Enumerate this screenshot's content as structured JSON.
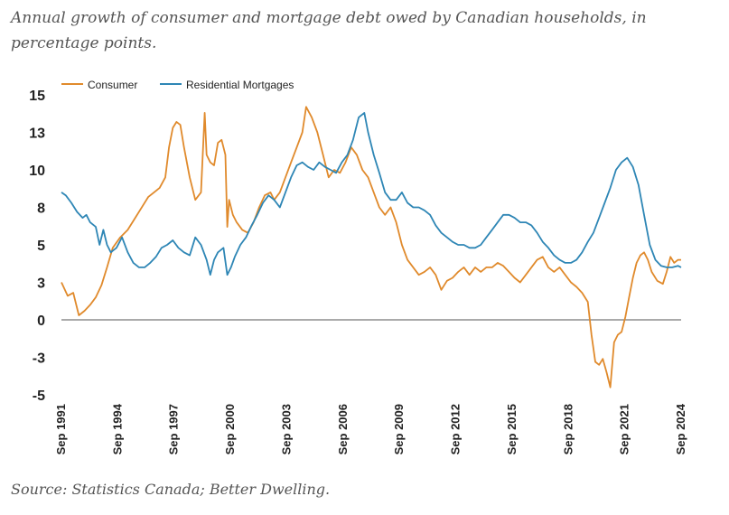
{
  "title": "Annual growth of consumer and mortgage debt owed by Canadian households, in percentage points.",
  "source": "Source: Statistics Canada; Better Dwelling.",
  "colors": {
    "consumer": "#e08a2c",
    "mortgages": "#2e86b5",
    "axis": "#555555"
  },
  "chart_data": {
    "type": "line",
    "xlim": [
      1991.67,
      2024.67
    ],
    "ylim": [
      -5,
      15
    ],
    "y_tick_labels": [
      "15",
      "13",
      "10",
      "8",
      "5",
      "3",
      "0",
      "-3",
      "-5"
    ],
    "y_tick_values": [
      15,
      12.5,
      10,
      7.5,
      5,
      2.5,
      0,
      -2.5,
      -5
    ],
    "x_tick_labels": [
      "Sep 1991",
      "Sep 1994",
      "Sep 1997",
      "Sep 2000",
      "Sep 2003",
      "Sep 2006",
      "Sep 2009",
      "Sep 2012",
      "Sep 2015",
      "Sep 2018",
      "Sep 2021",
      "Sep 2024"
    ],
    "x_tick_values": [
      1991.67,
      1994.67,
      1997.67,
      2000.67,
      2003.67,
      2006.67,
      2009.67,
      2012.67,
      2015.67,
      2018.67,
      2021.67,
      2024.67
    ],
    "legend_position": "top-left",
    "series": [
      {
        "name": "Consumer",
        "points": [
          [
            1991.67,
            2.5
          ],
          [
            1992.0,
            1.6
          ],
          [
            1992.3,
            1.8
          ],
          [
            1992.6,
            0.3
          ],
          [
            1992.9,
            0.6
          ],
          [
            1993.2,
            1.0
          ],
          [
            1993.5,
            1.5
          ],
          [
            1993.8,
            2.3
          ],
          [
            1994.1,
            3.5
          ],
          [
            1994.4,
            4.8
          ],
          [
            1994.8,
            5.5
          ],
          [
            1995.2,
            6.0
          ],
          [
            1995.6,
            6.8
          ],
          [
            1996.0,
            7.6
          ],
          [
            1996.3,
            8.2
          ],
          [
            1996.6,
            8.5
          ],
          [
            1996.9,
            8.8
          ],
          [
            1997.2,
            9.5
          ],
          [
            1997.4,
            11.5
          ],
          [
            1997.6,
            12.8
          ],
          [
            1997.8,
            13.2
          ],
          [
            1998.0,
            13.0
          ],
          [
            1998.2,
            11.5
          ],
          [
            1998.5,
            9.5
          ],
          [
            1998.8,
            8.0
          ],
          [
            1999.1,
            8.5
          ],
          [
            1999.3,
            13.8
          ],
          [
            1999.4,
            11.0
          ],
          [
            1999.6,
            10.5
          ],
          [
            1999.8,
            10.3
          ],
          [
            2000.0,
            11.8
          ],
          [
            2000.2,
            12.0
          ],
          [
            2000.4,
            11.0
          ],
          [
            2000.5,
            6.2
          ],
          [
            2000.6,
            8.0
          ],
          [
            2000.8,
            7.0
          ],
          [
            2001.0,
            6.5
          ],
          [
            2001.3,
            6.0
          ],
          [
            2001.6,
            5.8
          ],
          [
            2001.9,
            6.5
          ],
          [
            2002.2,
            7.5
          ],
          [
            2002.5,
            8.3
          ],
          [
            2002.8,
            8.5
          ],
          [
            2003.0,
            8.0
          ],
          [
            2003.3,
            8.5
          ],
          [
            2003.6,
            9.5
          ],
          [
            2003.9,
            10.5
          ],
          [
            2004.2,
            11.5
          ],
          [
            2004.5,
            12.5
          ],
          [
            2004.7,
            14.2
          ],
          [
            2005.0,
            13.5
          ],
          [
            2005.3,
            12.5
          ],
          [
            2005.6,
            11.0
          ],
          [
            2005.9,
            9.5
          ],
          [
            2006.2,
            10.0
          ],
          [
            2006.5,
            9.8
          ],
          [
            2006.8,
            10.5
          ],
          [
            2007.1,
            11.5
          ],
          [
            2007.4,
            11.0
          ],
          [
            2007.7,
            10.0
          ],
          [
            2008.0,
            9.5
          ],
          [
            2008.3,
            8.5
          ],
          [
            2008.6,
            7.5
          ],
          [
            2008.9,
            7.0
          ],
          [
            2009.2,
            7.5
          ],
          [
            2009.5,
            6.5
          ],
          [
            2009.8,
            5.0
          ],
          [
            2010.1,
            4.0
          ],
          [
            2010.4,
            3.5
          ],
          [
            2010.7,
            3.0
          ],
          [
            2011.0,
            3.2
          ],
          [
            2011.3,
            3.5
          ],
          [
            2011.6,
            3.0
          ],
          [
            2011.9,
            2.0
          ],
          [
            2012.2,
            2.6
          ],
          [
            2012.5,
            2.8
          ],
          [
            2012.8,
            3.2
          ],
          [
            2013.1,
            3.5
          ],
          [
            2013.4,
            3.0
          ],
          [
            2013.7,
            3.5
          ],
          [
            2014.0,
            3.2
          ],
          [
            2014.3,
            3.5
          ],
          [
            2014.6,
            3.5
          ],
          [
            2014.9,
            3.8
          ],
          [
            2015.2,
            3.6
          ],
          [
            2015.5,
            3.2
          ],
          [
            2015.8,
            2.8
          ],
          [
            2016.1,
            2.5
          ],
          [
            2016.4,
            3.0
          ],
          [
            2016.7,
            3.5
          ],
          [
            2017.0,
            4.0
          ],
          [
            2017.3,
            4.2
          ],
          [
            2017.6,
            3.5
          ],
          [
            2017.9,
            3.2
          ],
          [
            2018.2,
            3.5
          ],
          [
            2018.5,
            3.0
          ],
          [
            2018.8,
            2.5
          ],
          [
            2019.1,
            2.2
          ],
          [
            2019.4,
            1.8
          ],
          [
            2019.7,
            1.2
          ],
          [
            2019.9,
            -1.0
          ],
          [
            2020.1,
            -2.8
          ],
          [
            2020.3,
            -3.0
          ],
          [
            2020.5,
            -2.6
          ],
          [
            2020.7,
            -3.5
          ],
          [
            2020.9,
            -4.5
          ],
          [
            2021.1,
            -1.5
          ],
          [
            2021.3,
            -1.0
          ],
          [
            2021.5,
            -0.8
          ],
          [
            2021.7,
            0.2
          ],
          [
            2021.9,
            1.5
          ],
          [
            2022.1,
            2.8
          ],
          [
            2022.3,
            3.8
          ],
          [
            2022.5,
            4.3
          ],
          [
            2022.7,
            4.5
          ],
          [
            2022.9,
            4.0
          ],
          [
            2023.1,
            3.2
          ],
          [
            2023.4,
            2.6
          ],
          [
            2023.7,
            2.4
          ],
          [
            2023.9,
            3.2
          ],
          [
            2024.1,
            4.2
          ],
          [
            2024.3,
            3.8
          ],
          [
            2024.5,
            4.0
          ],
          [
            2024.67,
            4.0
          ]
        ]
      },
      {
        "name": "Residential Mortgages",
        "points": [
          [
            1991.67,
            8.5
          ],
          [
            1991.9,
            8.3
          ],
          [
            1992.2,
            7.8
          ],
          [
            1992.5,
            7.2
          ],
          [
            1992.8,
            6.8
          ],
          [
            1993.0,
            7.0
          ],
          [
            1993.2,
            6.5
          ],
          [
            1993.5,
            6.2
          ],
          [
            1993.7,
            5.0
          ],
          [
            1993.9,
            6.0
          ],
          [
            1994.1,
            5.0
          ],
          [
            1994.3,
            4.5
          ],
          [
            1994.6,
            4.8
          ],
          [
            1994.9,
            5.5
          ],
          [
            1995.2,
            4.5
          ],
          [
            1995.5,
            3.8
          ],
          [
            1995.8,
            3.5
          ],
          [
            1996.1,
            3.5
          ],
          [
            1996.4,
            3.8
          ],
          [
            1996.7,
            4.2
          ],
          [
            1997.0,
            4.8
          ],
          [
            1997.3,
            5.0
          ],
          [
            1997.6,
            5.3
          ],
          [
            1997.9,
            4.8
          ],
          [
            1998.2,
            4.5
          ],
          [
            1998.5,
            4.3
          ],
          [
            1998.8,
            5.5
          ],
          [
            1999.1,
            5.0
          ],
          [
            1999.4,
            4.0
          ],
          [
            1999.6,
            3.0
          ],
          [
            1999.8,
            4.0
          ],
          [
            2000.0,
            4.5
          ],
          [
            2000.3,
            4.8
          ],
          [
            2000.5,
            3.0
          ],
          [
            2000.7,
            3.5
          ],
          [
            2000.9,
            4.2
          ],
          [
            2001.2,
            5.0
          ],
          [
            2001.5,
            5.5
          ],
          [
            2001.8,
            6.3
          ],
          [
            2002.1,
            7.0
          ],
          [
            2002.4,
            7.8
          ],
          [
            2002.7,
            8.3
          ],
          [
            2003.0,
            8.0
          ],
          [
            2003.3,
            7.5
          ],
          [
            2003.6,
            8.5
          ],
          [
            2003.9,
            9.5
          ],
          [
            2004.2,
            10.3
          ],
          [
            2004.5,
            10.5
          ],
          [
            2004.8,
            10.2
          ],
          [
            2005.1,
            10.0
          ],
          [
            2005.4,
            10.5
          ],
          [
            2005.7,
            10.2
          ],
          [
            2006.0,
            10.0
          ],
          [
            2006.3,
            9.8
          ],
          [
            2006.6,
            10.5
          ],
          [
            2006.9,
            11.0
          ],
          [
            2007.2,
            12.0
          ],
          [
            2007.5,
            13.5
          ],
          [
            2007.8,
            13.8
          ],
          [
            2008.0,
            12.5
          ],
          [
            2008.3,
            11.0
          ],
          [
            2008.6,
            9.8
          ],
          [
            2008.9,
            8.5
          ],
          [
            2009.2,
            8.0
          ],
          [
            2009.5,
            8.0
          ],
          [
            2009.8,
            8.5
          ],
          [
            2010.1,
            7.8
          ],
          [
            2010.4,
            7.5
          ],
          [
            2010.7,
            7.5
          ],
          [
            2011.0,
            7.3
          ],
          [
            2011.3,
            7.0
          ],
          [
            2011.6,
            6.3
          ],
          [
            2011.9,
            5.8
          ],
          [
            2012.2,
            5.5
          ],
          [
            2012.5,
            5.2
          ],
          [
            2012.8,
            5.0
          ],
          [
            2013.1,
            5.0
          ],
          [
            2013.4,
            4.8
          ],
          [
            2013.7,
            4.8
          ],
          [
            2014.0,
            5.0
          ],
          [
            2014.3,
            5.5
          ],
          [
            2014.6,
            6.0
          ],
          [
            2014.9,
            6.5
          ],
          [
            2015.2,
            7.0
          ],
          [
            2015.5,
            7.0
          ],
          [
            2015.8,
            6.8
          ],
          [
            2016.1,
            6.5
          ],
          [
            2016.4,
            6.5
          ],
          [
            2016.7,
            6.3
          ],
          [
            2017.0,
            5.8
          ],
          [
            2017.3,
            5.2
          ],
          [
            2017.6,
            4.8
          ],
          [
            2017.9,
            4.3
          ],
          [
            2018.2,
            4.0
          ],
          [
            2018.5,
            3.8
          ],
          [
            2018.8,
            3.8
          ],
          [
            2019.1,
            4.0
          ],
          [
            2019.4,
            4.5
          ],
          [
            2019.7,
            5.2
          ],
          [
            2020.0,
            5.8
          ],
          [
            2020.3,
            6.8
          ],
          [
            2020.6,
            7.8
          ],
          [
            2020.9,
            8.8
          ],
          [
            2021.2,
            10.0
          ],
          [
            2021.5,
            10.5
          ],
          [
            2021.8,
            10.8
          ],
          [
            2022.1,
            10.2
          ],
          [
            2022.4,
            9.0
          ],
          [
            2022.7,
            7.0
          ],
          [
            2023.0,
            5.0
          ],
          [
            2023.3,
            4.0
          ],
          [
            2023.6,
            3.6
          ],
          [
            2023.9,
            3.5
          ],
          [
            2024.2,
            3.5
          ],
          [
            2024.5,
            3.6
          ],
          [
            2024.67,
            3.5
          ]
        ]
      }
    ]
  }
}
